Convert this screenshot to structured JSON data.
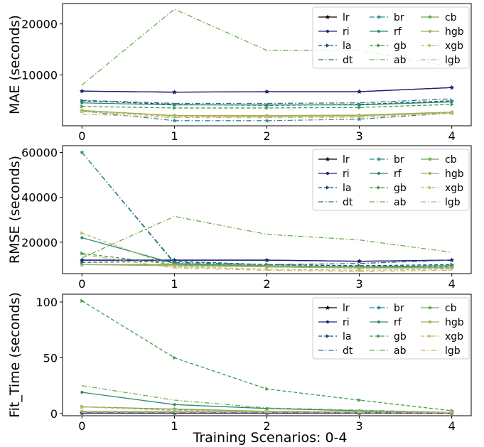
{
  "figure": {
    "xlabel": "Training Scenarios: 0-4",
    "x_ticks": [
      "0",
      "1",
      "2",
      "3",
      "4"
    ]
  },
  "series_styles": [
    {
      "name": "lr",
      "color": "#000000",
      "dash": "solid",
      "marker": "star"
    },
    {
      "name": "ri",
      "color": "#1a237e",
      "dash": "solid",
      "marker": "dot"
    },
    {
      "name": "la",
      "color": "#1f4e79",
      "dash": "dashed",
      "marker": "triangle"
    },
    {
      "name": "dt",
      "color": "#2c6e86",
      "dash": "dashdot",
      "marker": "none"
    },
    {
      "name": "br",
      "color": "#2e8b8b",
      "dash": "dashdot",
      "marker": "star"
    },
    {
      "name": "rf",
      "color": "#2e8b6e",
      "dash": "solid",
      "marker": "dot"
    },
    {
      "name": "gb",
      "color": "#3e9a4e",
      "dash": "dashed",
      "marker": "triangle"
    },
    {
      "name": "ab",
      "color": "#6aad4e",
      "dash": "dashdot",
      "marker": "none"
    },
    {
      "name": "cb",
      "color": "#6aa84f",
      "dash": "solid",
      "marker": "star"
    },
    {
      "name": "hgb",
      "color": "#9cb05a",
      "dash": "solid",
      "marker": "dot"
    },
    {
      "name": "xgb",
      "color": "#c8b866",
      "dash": "dashed",
      "marker": "triangle"
    },
    {
      "name": "lgb",
      "color": "#d2a97a",
      "dash": "dashdot",
      "marker": "none"
    }
  ],
  "chart_data": [
    {
      "type": "line",
      "ylabel": "MAE (seconds)",
      "x": [
        0,
        1,
        2,
        3,
        4
      ],
      "ylim": [
        0,
        24000
      ],
      "y_ticks": [
        10000,
        20000
      ],
      "legend_location": "top-right",
      "series": [
        {
          "name": "lr",
          "values": [
            6800,
            6600,
            6700,
            6700,
            7500
          ]
        },
        {
          "name": "ri",
          "values": [
            6800,
            6600,
            6700,
            6700,
            7500
          ]
        },
        {
          "name": "la",
          "values": [
            4900,
            4200,
            4000,
            4200,
            4900
          ]
        },
        {
          "name": "dt",
          "values": [
            5000,
            4400,
            4400,
            4500,
            5300
          ]
        },
        {
          "name": "br",
          "values": [
            2900,
            1000,
            1000,
            1300,
            2500
          ]
        },
        {
          "name": "rf",
          "values": [
            4500,
            4100,
            4100,
            4100,
            4700
          ]
        },
        {
          "name": "gb",
          "values": [
            3800,
            3500,
            3500,
            3600,
            4200
          ]
        },
        {
          "name": "ab",
          "values": [
            8000,
            22900,
            14800,
            14800,
            11600
          ]
        },
        {
          "name": "cb",
          "values": [
            3000,
            2000,
            1900,
            2000,
            2600
          ]
        },
        {
          "name": "hgb",
          "values": [
            3000,
            2000,
            2000,
            2100,
            2700
          ]
        },
        {
          "name": "xgb",
          "values": [
            2800,
            1800,
            1800,
            1900,
            2600
          ]
        },
        {
          "name": "lgb",
          "values": [
            2300,
            1600,
            1600,
            1700,
            2500
          ]
        }
      ]
    },
    {
      "type": "line",
      "ylabel": "RMSE (seconds)",
      "x": [
        0,
        1,
        2,
        3,
        4
      ],
      "ylim": [
        6000,
        63000
      ],
      "y_ticks": [
        20000,
        40000,
        60000
      ],
      "legend_location": "top-right",
      "series": [
        {
          "name": "lr",
          "values": [
            12000,
            12000,
            12000,
            11500,
            12000
          ]
        },
        {
          "name": "ri",
          "values": [
            12000,
            12000,
            12000,
            11500,
            12000
          ]
        },
        {
          "name": "la",
          "values": [
            11000,
            11500,
            10000,
            9500,
            10000
          ]
        },
        {
          "name": "dt",
          "values": [
            60000,
            11000,
            10000,
            10500,
            12000
          ]
        },
        {
          "name": "br",
          "values": [
            60000,
            10500,
            9500,
            9000,
            9500
          ]
        },
        {
          "name": "rf",
          "values": [
            22000,
            10500,
            9500,
            9000,
            9500
          ]
        },
        {
          "name": "gb",
          "values": [
            15000,
            10000,
            9000,
            8500,
            9000
          ]
        },
        {
          "name": "ab",
          "values": [
            13000,
            31500,
            23500,
            21000,
            15500
          ]
        },
        {
          "name": "cb",
          "values": [
            10000,
            10000,
            9500,
            9000,
            8500
          ]
        },
        {
          "name": "hgb",
          "values": [
            10000,
            9500,
            9000,
            8500,
            8500
          ]
        },
        {
          "name": "xgb",
          "values": [
            24000,
            9000,
            8000,
            7500,
            8000
          ]
        },
        {
          "name": "lgb",
          "values": [
            14500,
            8500,
            7500,
            7000,
            7500
          ]
        }
      ]
    },
    {
      "type": "line",
      "ylabel": "Fit_Time (seconds)",
      "x": [
        0,
        1,
        2,
        3,
        4
      ],
      "ylim": [
        -2,
        107
      ],
      "y_ticks": [
        0,
        50,
        100
      ],
      "legend_location": "top-right",
      "series": [
        {
          "name": "lr",
          "values": [
            0.5,
            0.5,
            0.5,
            0.5,
            0.3
          ]
        },
        {
          "name": "ri",
          "values": [
            0.3,
            0.3,
            0.3,
            0.3,
            0.2
          ]
        },
        {
          "name": "la",
          "values": [
            6,
            3,
            2,
            1.5,
            0.8
          ]
        },
        {
          "name": "dt",
          "values": [
            1,
            1,
            1,
            0.8,
            0.5
          ]
        },
        {
          "name": "br",
          "values": [
            1.5,
            1,
            1,
            1,
            0.5
          ]
        },
        {
          "name": "rf",
          "values": [
            19,
            8,
            4.5,
            2.5,
            1
          ]
        },
        {
          "name": "gb",
          "values": [
            101,
            50,
            22,
            12,
            2.5
          ]
        },
        {
          "name": "ab",
          "values": [
            25,
            12,
            5,
            3,
            1
          ]
        },
        {
          "name": "cb",
          "values": [
            6,
            4,
            2,
            1.5,
            1
          ]
        },
        {
          "name": "hgb",
          "values": [
            2,
            2,
            1.5,
            1.5,
            1
          ]
        },
        {
          "name": "xgb",
          "values": [
            6,
            3,
            2,
            1.5,
            1
          ]
        },
        {
          "name": "lgb",
          "values": [
            1,
            1,
            1,
            0.8,
            0.5
          ]
        }
      ]
    }
  ]
}
